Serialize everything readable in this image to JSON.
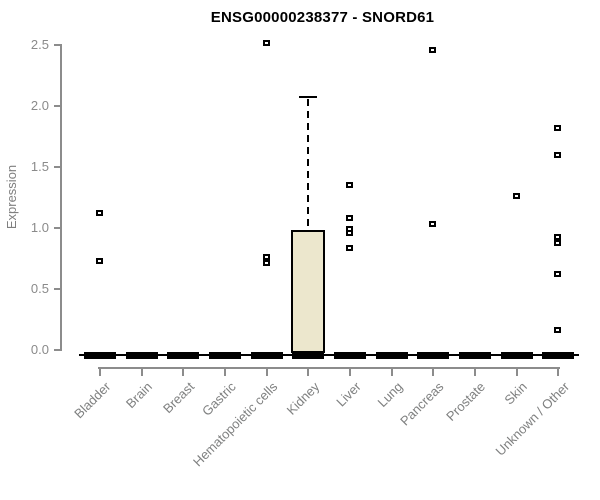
{
  "chart_data": {
    "type": "boxplot",
    "title": "ENSG00000238377 - SNORD61",
    "ylabel": "Expression",
    "xlabel": "",
    "ylim": [
      0,
      2.5
    ],
    "ytick_labels": [
      "0.0",
      "0.5",
      "1.0",
      "1.5",
      "2.0",
      "2.5"
    ],
    "ytick_values": [
      0,
      0.5,
      1,
      1.5,
      2,
      2.5
    ],
    "grid": "off",
    "legend": "none",
    "categories": [
      "Bladder",
      "Brain",
      "Breast",
      "Gastric",
      "Hematopoietic cells",
      "Kidney",
      "Liver",
      "Lung",
      "Pancreas",
      "Prostate",
      "Skin",
      "Unknown / Other"
    ],
    "boxes": [
      {
        "category": "Bladder",
        "median": 0,
        "q1": 0,
        "q3": 0,
        "whisker_low": 0,
        "whisker_high": 0,
        "outliers": [
          1.12,
          0.73
        ]
      },
      {
        "category": "Brain",
        "median": 0,
        "q1": 0,
        "q3": 0,
        "whisker_low": 0,
        "whisker_high": 0,
        "outliers": []
      },
      {
        "category": "Breast",
        "median": 0,
        "q1": 0,
        "q3": 0,
        "whisker_low": 0,
        "whisker_high": 0,
        "outliers": []
      },
      {
        "category": "Gastric",
        "median": 0,
        "q1": 0,
        "q3": 0,
        "whisker_low": 0,
        "whisker_high": 0,
        "outliers": []
      },
      {
        "category": "Hematopoietic cells",
        "median": 0,
        "q1": 0,
        "q3": 0,
        "whisker_low": 0,
        "whisker_high": 0,
        "outliers": [
          2.52,
          0.76,
          0.71
        ]
      },
      {
        "category": "Kidney",
        "median": 0,
        "q1": 0,
        "q3": 0.98,
        "whisker_low": 0,
        "whisker_high": 2.07,
        "outliers": []
      },
      {
        "category": "Liver",
        "median": 0,
        "q1": 0,
        "q3": 0,
        "whisker_low": 0,
        "whisker_high": 0,
        "outliers": [
          1.35,
          1.08,
          0.99,
          0.96,
          0.84
        ]
      },
      {
        "category": "Lung",
        "median": 0,
        "q1": 0,
        "q3": 0,
        "whisker_low": 0,
        "whisker_high": 0,
        "outliers": []
      },
      {
        "category": "Pancreas",
        "median": 0,
        "q1": 0,
        "q3": 0,
        "whisker_low": 0,
        "whisker_high": 0,
        "outliers": [
          2.46,
          1.03
        ]
      },
      {
        "category": "Prostate",
        "median": 0,
        "q1": 0,
        "q3": 0,
        "whisker_low": 0,
        "whisker_high": 0,
        "outliers": []
      },
      {
        "category": "Skin",
        "median": 0,
        "q1": 0,
        "q3": 0,
        "whisker_low": 0,
        "whisker_high": 0,
        "outliers": [
          1.26
        ]
      },
      {
        "category": "Unknown / Other",
        "median": 0,
        "q1": 0,
        "q3": 0,
        "whisker_low": 0,
        "whisker_high": 0,
        "outliers": [
          1.82,
          1.6,
          0.93,
          0.88,
          0.62,
          0.16
        ]
      }
    ],
    "colors": {
      "box_fill": "#ECE7CD",
      "box_stroke": "#000000",
      "axis": "#8c8c8c",
      "tick_label": "#8a8a8a",
      "category_label": "#7f8080",
      "title": "#000000",
      "point": "#000000"
    }
  }
}
